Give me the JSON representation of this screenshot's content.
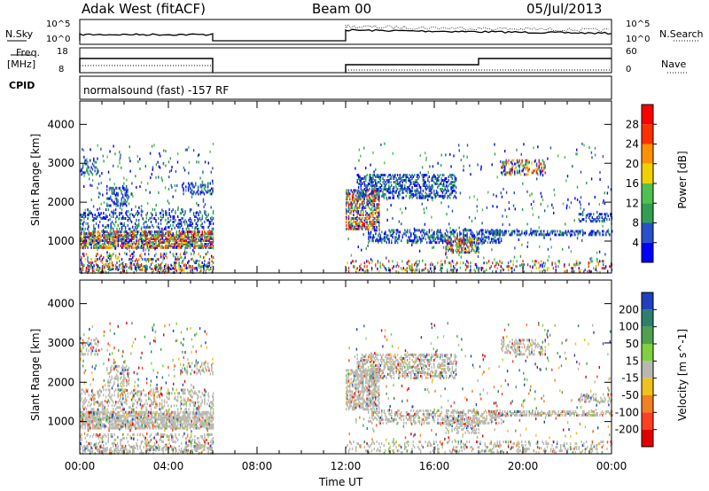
{
  "header": {
    "station": "Adak West (fitACF)",
    "beam": "Beam 00",
    "date": "05/Jul/2013"
  },
  "top_panels": {
    "nsky_label": "N.Sky",
    "nsky_ticks": [
      "10^5",
      "10^0"
    ],
    "nsearch_label": "N.Search",
    "nsearch_ticks": [
      "10^5",
      "10^0"
    ],
    "freq_label_1": "Freq.",
    "freq_label_2": "[MHz]",
    "freq_ticks": [
      "18",
      "8"
    ],
    "nave_label": "Nave",
    "nave_ticks": [
      "60",
      "0"
    ],
    "cpid_label": "CPID",
    "cpid_text": "normalsound (fast) -157 RF"
  },
  "colors": {
    "power_scale": [
      "#0000ff",
      "#2850c8",
      "#30a050",
      "#50c050",
      "#f0d000",
      "#ff9000",
      "#ff3000",
      "#ff0000"
    ],
    "velocity_scale": [
      "#2040c0",
      "#2f7f6f",
      "#50a050",
      "#80d040",
      "#b8b8b0",
      "#f0c020",
      "#f08020",
      "#ff4020",
      "#e00000"
    ]
  },
  "chart_data": [
    {
      "type": "heatmap",
      "title": "",
      "xlabel": "Time UT",
      "ylabel": "Slant Range [km]",
      "xlim": [
        0,
        24
      ],
      "ylim": [
        180,
        4600
      ],
      "x_ticks": [
        "00:00",
        "04:00",
        "08:00",
        "12:00",
        "16:00",
        "20:00",
        "00:00"
      ],
      "y_ticks": [
        "1000",
        "2000",
        "3000",
        "4000"
      ],
      "colorbar_label": "Power [dB]",
      "colorbar_ticks": [
        "28",
        "24",
        "20",
        "16",
        "12",
        "8",
        "4"
      ],
      "grid": false,
      "data_gap_hours": [
        6.0,
        12.0
      ]
    },
    {
      "type": "heatmap",
      "title": "",
      "xlabel": "Time UT",
      "ylabel": "Slant Range [km]",
      "xlim": [
        0,
        24
      ],
      "ylim": [
        180,
        4600
      ],
      "x_ticks": [
        "00:00",
        "04:00",
        "08:00",
        "12:00",
        "16:00",
        "20:00",
        "00:00"
      ],
      "y_ticks": [
        "1000",
        "2000",
        "3000",
        "4000"
      ],
      "colorbar_label": "Velocity [m s^-1]",
      "colorbar_ticks": [
        "200",
        "100",
        "50",
        "15",
        "-15",
        "-50",
        "-100",
        "-200"
      ],
      "grid": false,
      "data_gap_hours": [
        6.0,
        12.0
      ]
    }
  ]
}
